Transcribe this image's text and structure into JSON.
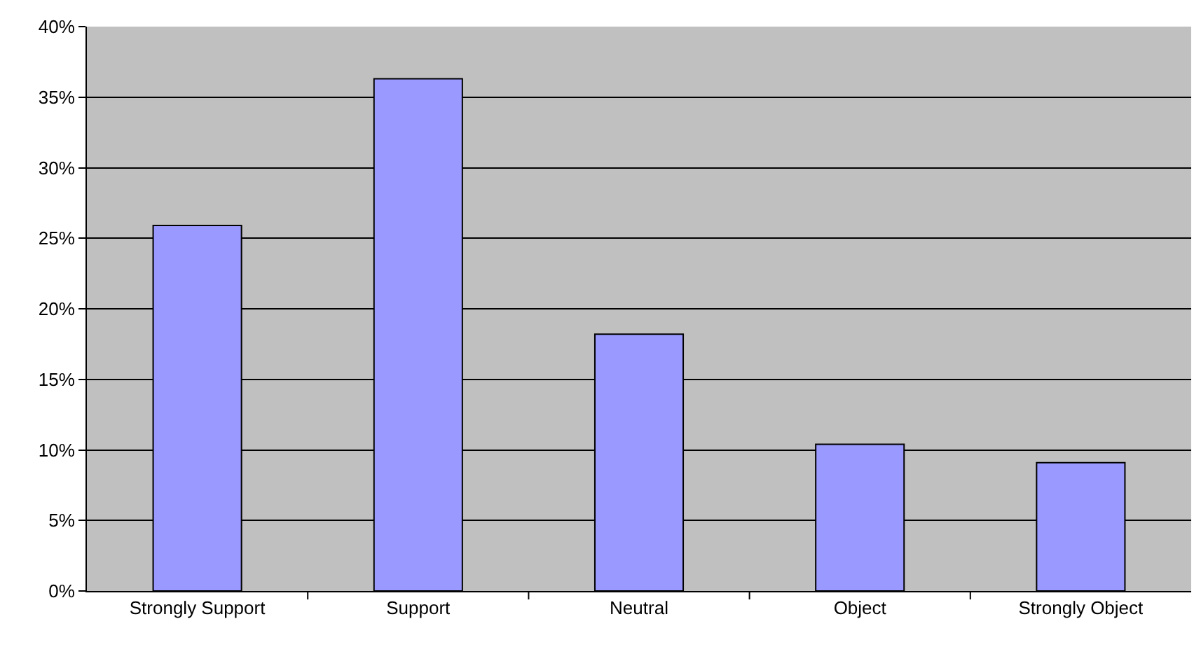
{
  "chart_data": {
    "type": "bar",
    "categories": [
      "Strongly Support",
      "Support",
      "Neutral",
      "Object",
      "Strongly Object"
    ],
    "values": [
      25.9,
      36.3,
      18.2,
      10.4,
      9.1
    ],
    "color": "#9999ff",
    "ylim": [
      0,
      40
    ],
    "yticks": [
      {
        "value": 0,
        "label": "0%"
      },
      {
        "value": 5,
        "label": "5%"
      },
      {
        "value": 10,
        "label": "10%"
      },
      {
        "value": 15,
        "label": "15%"
      },
      {
        "value": 20,
        "label": "20%"
      },
      {
        "value": 25,
        "label": "25%"
      },
      {
        "value": 30,
        "label": "30%"
      },
      {
        "value": 35,
        "label": "35%"
      },
      {
        "value": 40,
        "label": "40%"
      }
    ],
    "grid": "y",
    "legend": false
  }
}
